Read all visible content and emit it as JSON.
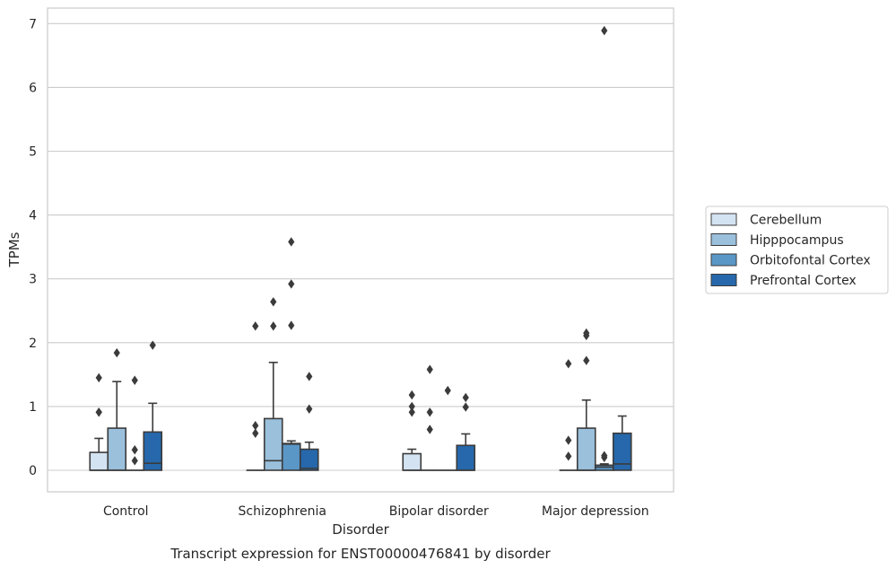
{
  "chart_data": {
    "type": "box",
    "title": "",
    "caption": "Transcript expression for ENST00000476841 by disorder",
    "xlabel": "Disorder",
    "ylabel": "TPMs",
    "ylim": [
      -0.33,
      7.25
    ],
    "yticks": [
      0,
      1,
      2,
      3,
      4,
      5,
      6,
      7
    ],
    "grid": "horizontal",
    "legend_position": "right",
    "categories": [
      "Control",
      "Schizophrenia",
      "Bipolar disorder",
      "Major depression"
    ],
    "series": [
      {
        "name": "Cerebellum",
        "color": "#d4e3f2",
        "boxes": [
          {
            "q1": 0,
            "median": 0,
            "q3": 0.28,
            "whisker_low": 0,
            "whisker_high": 0.5,
            "outliers": [
              0.91,
              1.45
            ]
          },
          {
            "q1": 0,
            "median": 0,
            "q3": 0,
            "whisker_low": 0,
            "whisker_high": 0,
            "outliers": []
          },
          {
            "q1": 0,
            "median": 0,
            "q3": 0.26,
            "whisker_low": 0,
            "whisker_high": 0.33,
            "outliers": [
              0.91,
              1.0,
              1.18
            ]
          },
          {
            "q1": 0,
            "median": 0,
            "q3": 0,
            "whisker_low": 0,
            "whisker_high": 0,
            "outliers": []
          }
        ]
      },
      {
        "name": "Hipppocampus",
        "color": "#9ac0dc",
        "boxes": [
          {
            "q1": 0,
            "median": 0,
            "q3": 0.66,
            "whisker_low": 0,
            "whisker_high": 1.39,
            "outliers": [
              1.84
            ]
          },
          {
            "q1": 0,
            "median": 0.15,
            "q3": 0.81,
            "whisker_low": 0,
            "whisker_high": 1.69,
            "outliers": [
              2.26,
              2.64
            ]
          },
          {
            "q1": 0,
            "median": 0,
            "q3": 0,
            "whisker_low": 0,
            "whisker_high": 0,
            "outliers": [
              0.64,
              0.91,
              1.58
            ]
          },
          {
            "q1": 0,
            "median": 0,
            "q3": 0.66,
            "whisker_low": 0,
            "whisker_high": 1.1,
            "outliers": [
              1.72,
              2.11,
              2.15
            ]
          }
        ]
      },
      {
        "name": "Orbitofontal Cortex",
        "color": "#5a97c7",
        "boxes": [
          {
            "q1": 0,
            "median": 0,
            "q3": 0,
            "whisker_low": 0,
            "whisker_high": 0,
            "outliers": [
              0.15,
              0.32,
              1.41
            ]
          },
          {
            "q1": 0,
            "median": 0.41,
            "q3": 0.42,
            "whisker_low": 0,
            "whisker_high": 0.46,
            "outliers": [
              2.27,
              2.92,
              3.58
            ]
          },
          {
            "q1": 0,
            "median": 0,
            "q3": 0,
            "whisker_low": 0,
            "whisker_high": 0,
            "outliers": [
              1.25
            ]
          },
          {
            "q1": 0,
            "median": 0.05,
            "q3": 0.08,
            "whisker_low": 0,
            "whisker_high": 0.1,
            "outliers": [
              0.2,
              0.23,
              6.89
            ]
          }
        ]
      },
      {
        "name": "Prefrontal Cortex",
        "color": "#2668ab",
        "boxes": [
          {
            "q1": 0,
            "median": 0.11,
            "q3": 0.6,
            "whisker_low": 0,
            "whisker_high": 1.05,
            "outliers": [
              1.96
            ]
          },
          {
            "q1": 0,
            "median": 0.03,
            "q3": 0.33,
            "whisker_low": 0,
            "whisker_high": 0.44,
            "outliers": [
              0.96,
              1.47
            ]
          },
          {
            "q1": 0,
            "median": 0,
            "q3": 0.39,
            "whisker_low": 0,
            "whisker_high": 0.57,
            "outliers": [
              0.99,
              1.14
            ]
          },
          {
            "q1": 0,
            "median": 0.1,
            "q3": 0.58,
            "whisker_low": 0,
            "whisker_high": 0.85,
            "outliers": []
          }
        ]
      }
    ],
    "extra_outliers": [
      {
        "category": 0,
        "series": 0,
        "value": 0.91
      },
      {
        "category": 3,
        "series": 0,
        "value": 0.47
      },
      {
        "category": 3,
        "series": 0,
        "value": 0.22
      },
      {
        "category": 3,
        "series": 0,
        "value": 1.67
      },
      {
        "category": 1,
        "series": 0,
        "value": 0.7
      },
      {
        "category": 1,
        "series": 0,
        "value": 0.58
      },
      {
        "category": 1,
        "series": 0,
        "value": 2.26
      }
    ]
  }
}
